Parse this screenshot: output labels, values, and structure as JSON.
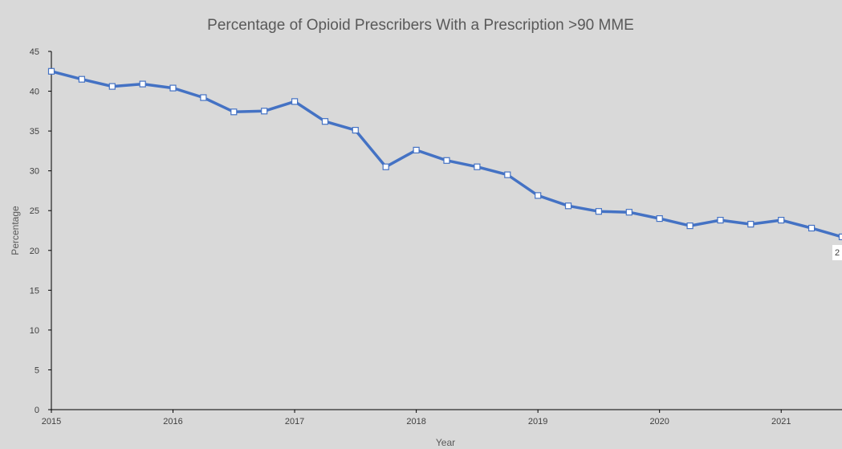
{
  "chart_data": {
    "type": "line",
    "title": "Percentage of Opioid Prescribers With a Prescription >90 MME",
    "xlabel": "Year",
    "ylabel": "Percentage",
    "ylim": [
      0,
      45
    ],
    "xlim": [
      2015,
      2021.5
    ],
    "y_ticks": [
      "0",
      "5",
      "10",
      "15",
      "20",
      "25",
      "30",
      "35",
      "40",
      "45"
    ],
    "x_ticks": [
      "2015",
      "2016",
      "2017",
      "2018",
      "2019",
      "2020",
      "2021"
    ],
    "grid": false,
    "series": [
      {
        "x": [
          2015,
          2015.25,
          2015.5,
          2015.75,
          2016,
          2016.25,
          2016.5,
          2016.75,
          2017,
          2017.25,
          2017.5,
          2017.75,
          2018,
          2018.25,
          2018.5,
          2018.75,
          2019,
          2019.25,
          2019.5,
          2019.75,
          2020,
          2020.25,
          2020.5,
          2020.75,
          2021,
          2021.25,
          2021.5
        ],
        "values": [
          42.5,
          41.5,
          40.6,
          40.9,
          40.4,
          39.2,
          37.4,
          37.5,
          38.7,
          36.2,
          35.1,
          30.5,
          32.6,
          31.3,
          30.5,
          29.5,
          26.9,
          25.6,
          24.9,
          24.8,
          24.0,
          23.1,
          23.8,
          23.3,
          23.8,
          22.8,
          21.7
        ],
        "color": "#4472c4"
      }
    ],
    "annotations": [
      "2"
    ]
  }
}
